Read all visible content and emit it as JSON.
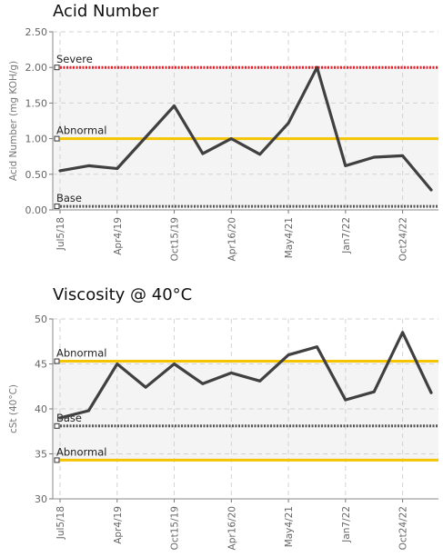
{
  "chart_data": [
    {
      "type": "line",
      "title": "Acid Number",
      "ylabel": "Acid Number (mg KOH/g)",
      "xlabel": "",
      "ylim": [
        0,
        2.5
      ],
      "yticks": [
        "0.00",
        "0.50",
        "1.00",
        "1.50",
        "2.00",
        "2.50"
      ],
      "ytick_values": [
        0,
        0.5,
        1.0,
        1.5,
        2.0,
        2.5
      ],
      "xtick_labels": [
        "Jul5/18",
        "Apr4/19",
        "Oct15/19",
        "Apr16/20",
        "May4/21",
        "Jan7/22",
        "Oct24/22"
      ],
      "xtick_index": [
        0,
        2,
        4,
        6,
        8,
        10,
        12
      ],
      "grid": true,
      "series": [
        {
          "values": [
            0.55,
            0.62,
            0.58,
            1.02,
            1.46,
            0.79,
            1.0,
            0.78,
            1.22,
            2.0,
            0.62,
            0.74,
            0.76,
            0.28
          ],
          "color": "#404040"
        }
      ],
      "limits": [
        {
          "label": "Severe",
          "value": 2.0,
          "color": "#e8202a",
          "style": "dotted"
        },
        {
          "label": "Abnormal",
          "value": 1.0,
          "color": "#f5c400",
          "style": "solid"
        },
        {
          "label": "Base",
          "value": 0.05,
          "color": "#555555",
          "style": "dotted"
        }
      ],
      "band_color": "#f4f4f4"
    },
    {
      "type": "line",
      "title": "Viscosity @ 40°C",
      "ylabel": "cSt (40°C)",
      "xlabel": "",
      "ylim": [
        30,
        50
      ],
      "yticks": [
        "30",
        "35",
        "40",
        "45",
        "50"
      ],
      "ytick_values": [
        30,
        35,
        40,
        45,
        50
      ],
      "xtick_labels": [
        "Jul5/18",
        "Apr4/19",
        "Oct15/19",
        "Apr16/20",
        "May4/21",
        "Jan7/22",
        "Oct24/22"
      ],
      "xtick_index": [
        0,
        2,
        4,
        6,
        8,
        10,
        12
      ],
      "grid": true,
      "series": [
        {
          "values": [
            39.0,
            39.8,
            45.0,
            42.4,
            45.0,
            42.8,
            44.0,
            43.1,
            46.0,
            46.9,
            41.0,
            41.9,
            48.5,
            41.8
          ],
          "color": "#404040"
        }
      ],
      "limits": [
        {
          "label": "Abnormal",
          "value": 45.3,
          "color": "#f5c400",
          "style": "solid"
        },
        {
          "label": "Base",
          "value": 38.1,
          "color": "#555555",
          "style": "dotted"
        },
        {
          "label": "Abnormal",
          "value": 34.3,
          "color": "#f5c400",
          "style": "solid"
        }
      ],
      "band_color": "#f4f4f4"
    }
  ]
}
